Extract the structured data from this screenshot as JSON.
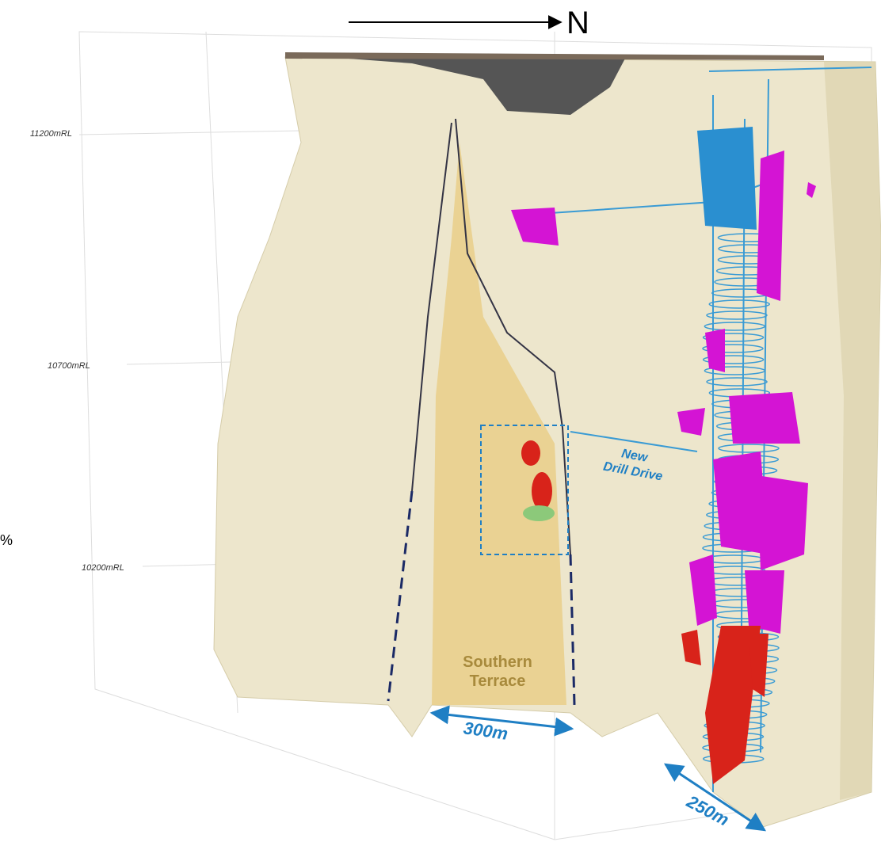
{
  "north_arrow": {
    "label": "N"
  },
  "elevation_labels": [
    "11200mRL",
    "10700mRL",
    "10200mRL"
  ],
  "annotations": {
    "drill_drive": [
      "New",
      "Drill Drive"
    ],
    "southern_terrace": [
      "Southern",
      "Terrace"
    ]
  },
  "dimensions": [
    "300m",
    "250m"
  ],
  "edge_text": "%"
}
